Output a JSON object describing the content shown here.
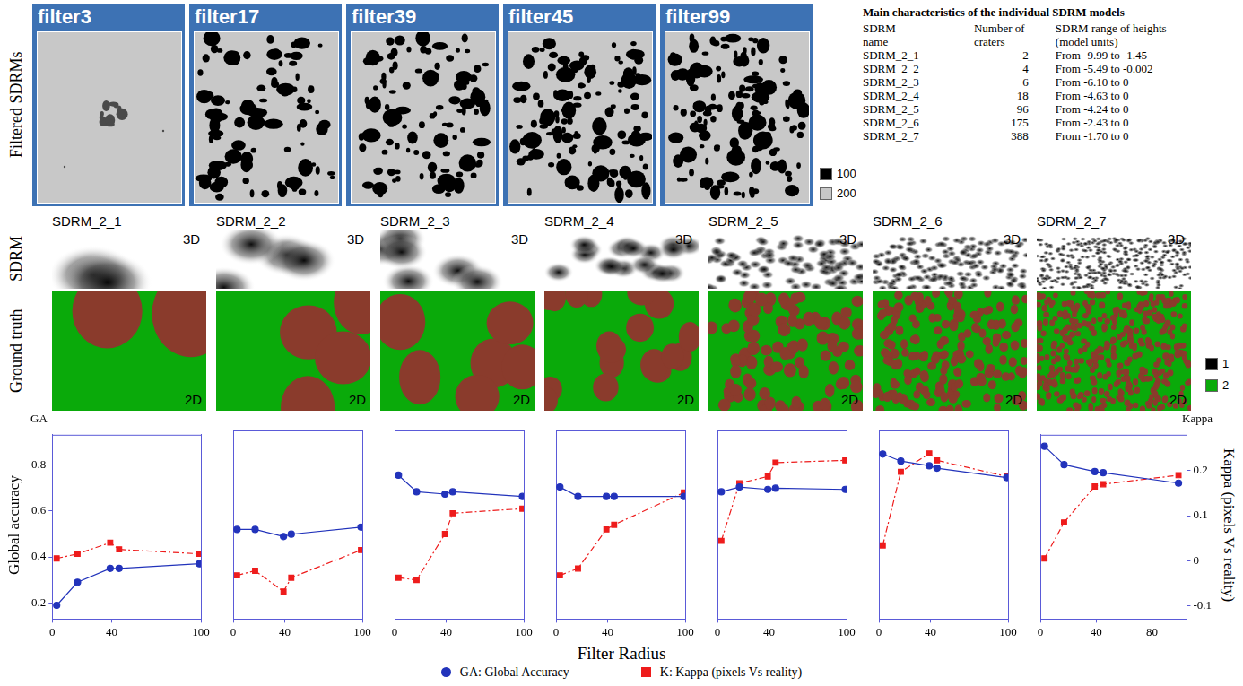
{
  "filtered_sdrms": {
    "label": "Filtered SDRMs",
    "panels": [
      "filter3",
      "filter17",
      "filter39",
      "filter45",
      "filter99"
    ],
    "keys": [
      {
        "label": "100",
        "color": "#000000"
      },
      {
        "label": "200",
        "color": "#c8c8c8"
      }
    ]
  },
  "table": {
    "title": "Main characteristics of the individual SDRM models",
    "columns": [
      [
        "SDRM",
        "name"
      ],
      [
        "Number of",
        "craters"
      ],
      [
        "SDRM range of heights",
        "(model units)"
      ]
    ],
    "rows": [
      [
        "SDRM_2_1",
        2,
        "From -9.99 to -1.45"
      ],
      [
        "SDRM_2_2",
        4,
        "From -5.49 to -0.002"
      ],
      [
        "SDRM_2_3",
        6,
        "From -6.10 to 0"
      ],
      [
        "SDRM_2_4",
        18,
        "From -4.63 to 0"
      ],
      [
        "SDRM_2_5",
        96,
        "From -4.24 to 0"
      ],
      [
        "SDRM_2_6",
        175,
        "From -2.43 to 0"
      ],
      [
        "SDRM_2_7",
        388,
        "From -1.70 to 0"
      ]
    ]
  },
  "models": {
    "row_labels": [
      "SDRM",
      "Ground truth"
    ],
    "names": [
      "SDRM_2_1",
      "SDRM_2_2",
      "SDRM_2_3",
      "SDRM_2_4",
      "SDRM_2_5",
      "SDRM_2_6",
      "SDRM_2_7"
    ],
    "view_3d": "3D",
    "view_2d": "2D",
    "keys": [
      {
        "label": "1",
        "color": "#000000"
      },
      {
        "label": "2",
        "color": "#0aaa0a"
      }
    ]
  },
  "shared": {
    "xlabel": "Filter Radius",
    "legend": "bottom"
  },
  "chart_data": [
    {
      "type": "line",
      "x": [
        3,
        17,
        39,
        45,
        99
      ],
      "xlim": [
        0,
        100
      ],
      "xticks": [
        0,
        40,
        100
      ],
      "ylim": [
        0.13,
        0.93
      ],
      "yticks": [
        0.2,
        0.4,
        0.6,
        0.8
      ],
      "y2lim": [
        -0.13,
        0.28
      ],
      "ylabel": "Global accuracy",
      "ylabel_short": "GA",
      "series": [
        {
          "name": "GA: Global Accuracy",
          "color": "#2233bb",
          "marker": "circle",
          "line_style": "solid",
          "values": [
            0.19,
            0.29,
            0.35,
            0.35,
            0.37
          ]
        },
        {
          "name": "K: Kappa (pixels Vs reality)",
          "color": "#ee1c1c",
          "marker": "square",
          "line_style": "dashdot",
          "axis": "y2",
          "values": [
            0.005,
            0.015,
            0.04,
            0.025,
            0.015
          ]
        }
      ]
    },
    {
      "type": "line",
      "x": [
        3,
        17,
        39,
        45,
        99
      ],
      "xlim": [
        0,
        100
      ],
      "xticks": [
        0,
        40,
        100
      ],
      "ylim": [
        0.13,
        0.93
      ],
      "y2lim": [
        -0.13,
        0.28
      ],
      "series": [
        {
          "name": "GA: Global Accuracy",
          "color": "#2233bb",
          "marker": "circle",
          "line_style": "solid",
          "values": [
            0.51,
            0.51,
            0.48,
            0.49,
            0.52
          ]
        },
        {
          "name": "K: Kappa (pixels Vs reality)",
          "color": "#ee1c1c",
          "marker": "square",
          "line_style": "dashdot",
          "axis": "y2",
          "values": [
            -0.035,
            -0.025,
            -0.07,
            -0.04,
            0.02
          ]
        }
      ]
    },
    {
      "type": "line",
      "x": [
        3,
        17,
        39,
        45,
        99
      ],
      "xlim": [
        0,
        100
      ],
      "xticks": [
        0,
        40,
        100
      ],
      "ylim": [
        0.13,
        0.93
      ],
      "y2lim": [
        -0.13,
        0.28
      ],
      "series": [
        {
          "name": "GA: Global Accuracy",
          "color": "#2233bb",
          "marker": "circle",
          "line_style": "solid",
          "values": [
            0.74,
            0.67,
            0.66,
            0.67,
            0.65
          ]
        },
        {
          "name": "K: Kappa (pixels Vs reality)",
          "color": "#ee1c1c",
          "marker": "square",
          "line_style": "dashdot",
          "axis": "y2",
          "values": [
            -0.04,
            -0.045,
            0.055,
            0.1,
            0.11
          ]
        }
      ]
    },
    {
      "type": "line",
      "x": [
        3,
        17,
        39,
        45,
        99
      ],
      "xlim": [
        0,
        100
      ],
      "xticks": [
        0,
        40,
        100
      ],
      "ylim": [
        0.13,
        0.93
      ],
      "y2lim": [
        -0.13,
        0.28
      ],
      "series": [
        {
          "name": "GA: Global Accuracy",
          "color": "#2233bb",
          "marker": "circle",
          "line_style": "solid",
          "values": [
            0.69,
            0.65,
            0.65,
            0.65,
            0.65
          ]
        },
        {
          "name": "K: Kappa (pixels Vs reality)",
          "color": "#ee1c1c",
          "marker": "square",
          "line_style": "dashdot",
          "axis": "y2",
          "values": [
            -0.035,
            -0.02,
            0.065,
            0.075,
            0.145
          ]
        }
      ]
    },
    {
      "type": "line",
      "x": [
        3,
        17,
        39,
        45,
        99
      ],
      "xlim": [
        0,
        100
      ],
      "xticks": [
        0,
        40,
        100
      ],
      "ylim": [
        0.13,
        0.93
      ],
      "y2lim": [
        -0.13,
        0.28
      ],
      "series": [
        {
          "name": "GA: Global Accuracy",
          "color": "#2233bb",
          "marker": "circle",
          "line_style": "solid",
          "values": [
            0.67,
            0.69,
            0.68,
            0.685,
            0.68
          ]
        },
        {
          "name": "K: Kappa (pixels Vs reality)",
          "color": "#ee1c1c",
          "marker": "square",
          "line_style": "dashdot",
          "axis": "y2",
          "values": [
            0.04,
            0.165,
            0.18,
            0.21,
            0.215
          ]
        }
      ]
    },
    {
      "type": "line",
      "x": [
        3,
        17,
        39,
        45,
        99
      ],
      "xlim": [
        0,
        100
      ],
      "xticks": [
        0,
        40,
        100
      ],
      "ylim": [
        0.13,
        0.93
      ],
      "y2lim": [
        -0.13,
        0.28
      ],
      "series": [
        {
          "name": "GA: Global Accuracy",
          "color": "#2233bb",
          "marker": "circle",
          "line_style": "solid",
          "values": [
            0.83,
            0.8,
            0.78,
            0.77,
            0.73
          ]
        },
        {
          "name": "K: Kappa (pixels Vs reality)",
          "color": "#ee1c1c",
          "marker": "square",
          "line_style": "dashdot",
          "axis": "y2",
          "values": [
            0.03,
            0.19,
            0.23,
            0.215,
            0.18
          ]
        }
      ]
    },
    {
      "type": "line",
      "x": [
        3,
        17,
        39,
        45,
        99
      ],
      "xlim": [
        0,
        105
      ],
      "xticks": [
        0,
        40,
        80
      ],
      "ylim": [
        0.13,
        0.93
      ],
      "y2lim": [
        -0.13,
        0.28
      ],
      "y2ticks": [
        -0.1,
        0,
        0.1,
        0.2
      ],
      "y2label": "Kappa (pixels Vs reality)",
      "y2label_short": "Kappa",
      "series": [
        {
          "name": "GA: Global Accuracy",
          "color": "#2233bb",
          "marker": "circle",
          "line_style": "solid",
          "values": [
            0.88,
            0.8,
            0.77,
            0.765,
            0.72
          ]
        },
        {
          "name": "K: Kappa (pixels Vs reality)",
          "color": "#ee1c1c",
          "marker": "square",
          "line_style": "dashdot",
          "axis": "y2",
          "values": [
            0.005,
            0.085,
            0.165,
            0.17,
            0.19
          ]
        }
      ]
    }
  ]
}
